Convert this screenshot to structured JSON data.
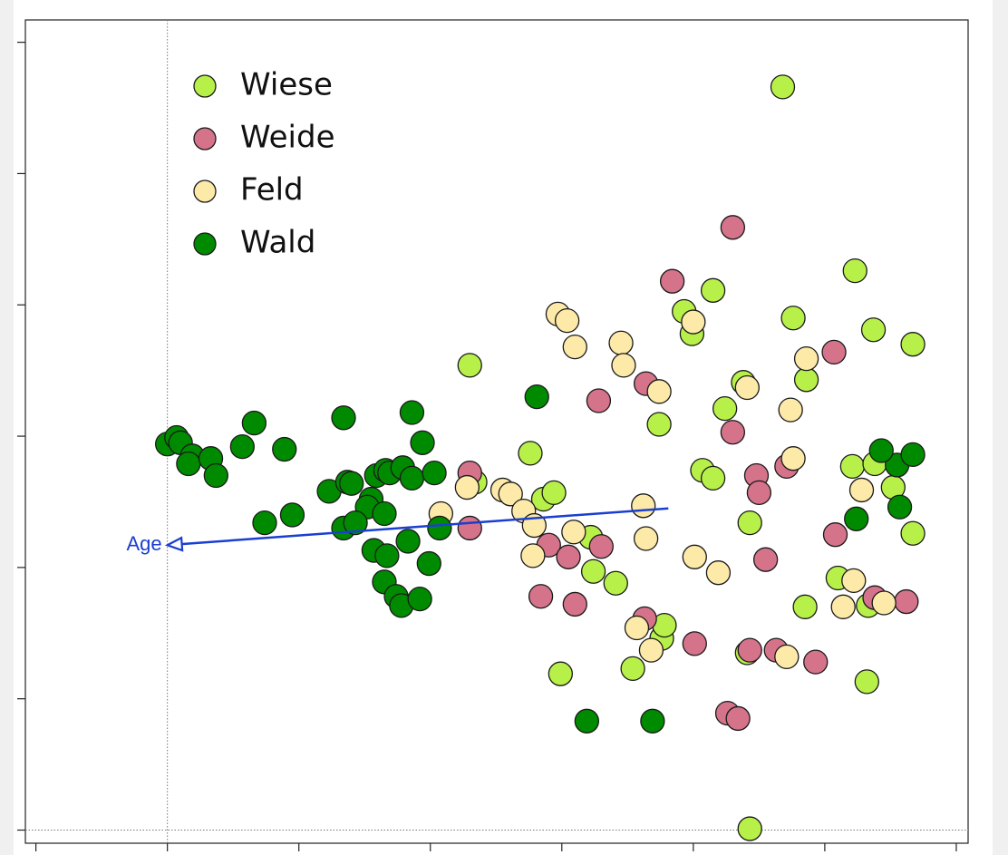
{
  "chart_data": {
    "type": "scatter",
    "xlim": [
      -1.08,
      6.09
    ],
    "ylim": [
      -0.1,
      6.17
    ],
    "xticks": [
      -1,
      0,
      1,
      2,
      3,
      4,
      5,
      6
    ],
    "yticks": [
      0,
      1,
      2,
      3,
      4,
      5,
      6
    ],
    "zero_lines": true,
    "legend": "upper left",
    "series": [
      {
        "name": "Wiese",
        "color": "#b8f04a",
        "x": [
          4.68,
          5.23,
          4.15,
          3.93,
          3.99,
          4.76,
          5.37,
          5.67,
          4.86,
          4.38,
          2.3,
          3.74,
          2.76,
          4.24,
          4.07,
          4.15,
          5.21,
          5.38,
          5.52,
          2.86,
          2.94,
          4.43,
          5.67,
          3.22,
          3.24,
          3.41,
          5.1,
          4.85,
          5.33,
          3.76,
          3.78,
          4.41,
          3.54,
          2.99,
          5.32,
          4.43,
          2.34
        ],
        "values": [
          5.66,
          4.26,
          4.11,
          3.95,
          3.78,
          3.9,
          3.81,
          3.7,
          3.43,
          3.41,
          3.54,
          3.09,
          2.87,
          3.21,
          2.74,
          2.68,
          2.77,
          2.79,
          2.61,
          2.52,
          2.57,
          2.34,
          2.26,
          2.23,
          1.97,
          1.88,
          1.92,
          1.7,
          1.71,
          1.46,
          1.56,
          1.35,
          1.23,
          1.19,
          1.13,
          0.01,
          2.65
        ]
      },
      {
        "name": "Weide",
        "color": "#d4738a",
        "x": [
          4.3,
          3.84,
          5.07,
          3.64,
          3.28,
          4.3,
          4.71,
          4.48,
          4.5,
          2.3,
          2.3,
          2.9,
          3.05,
          3.3,
          5.08,
          4.55,
          2.84,
          3.1,
          5.38,
          5.62,
          3.63,
          4.01,
          4.43,
          4.63,
          4.93,
          4.26,
          4.34
        ],
        "values": [
          4.59,
          4.18,
          3.64,
          3.4,
          3.27,
          3.03,
          2.77,
          2.7,
          2.57,
          2.72,
          2.3,
          2.17,
          2.08,
          2.16,
          2.25,
          2.06,
          1.78,
          1.72,
          1.77,
          1.74,
          1.61,
          1.42,
          1.37,
          1.37,
          1.28,
          0.89,
          0.85
        ]
      },
      {
        "name": "Feld",
        "color": "#fde9a8",
        "x": [
          2.97,
          3.04,
          3.1,
          3.45,
          3.47,
          3.74,
          4.0,
          4.86,
          4.41,
          4.74,
          4.76,
          5.28,
          2.28,
          2.55,
          2.61,
          2.71,
          2.79,
          2.08,
          3.09,
          3.62,
          3.64,
          2.78,
          4.01,
          4.19,
          5.22,
          5.14,
          5.45,
          3.57,
          3.68,
          4.71
        ],
        "values": [
          3.93,
          3.88,
          3.68,
          3.71,
          3.54,
          3.34,
          3.87,
          3.59,
          3.37,
          3.2,
          2.83,
          2.59,
          2.61,
          2.59,
          2.56,
          2.43,
          2.32,
          2.41,
          2.27,
          2.47,
          2.22,
          2.09,
          2.08,
          1.96,
          1.9,
          1.7,
          1.73,
          1.54,
          1.37,
          1.32
        ]
      },
      {
        "name": "Wald",
        "color": "#008a00",
        "x": [
          0,
          0.07,
          0.1,
          0.19,
          0.16,
          0.33,
          0.37,
          0.57,
          0.66,
          0.89,
          1.34,
          1.86,
          1.94,
          2.81,
          1.23,
          1.37,
          1.4,
          1.59,
          1.66,
          1.69,
          1.79,
          1.86,
          2.03,
          1.55,
          1.52,
          1.65,
          0.74,
          0.95,
          1.34,
          1.43,
          1.57,
          1.67,
          1.83,
          1.99,
          1.65,
          1.74,
          1.78,
          1.92,
          2.07,
          5.55,
          5.43,
          5.67,
          5.24,
          5.57,
          3.19,
          3.69
        ],
        "values": [
          2.94,
          2.99,
          2.95,
          2.85,
          2.79,
          2.83,
          2.7,
          2.92,
          3.1,
          2.9,
          3.14,
          3.18,
          2.95,
          3.3,
          2.58,
          2.65,
          2.64,
          2.7,
          2.74,
          2.72,
          2.76,
          2.68,
          2.72,
          2.52,
          2.46,
          2.41,
          2.34,
          2.4,
          2.3,
          2.34,
          2.13,
          2.09,
          2.2,
          2.03,
          1.89,
          1.78,
          1.71,
          1.76,
          2.3,
          2.78,
          2.89,
          2.86,
          2.37,
          2.46,
          0.83,
          0.83
        ]
      }
    ],
    "arrows": [
      {
        "label": "Age",
        "color": "#1a3fd0",
        "x": [
          3.81,
          0
        ],
        "y": [
          2.45,
          2.17
        ]
      }
    ]
  }
}
